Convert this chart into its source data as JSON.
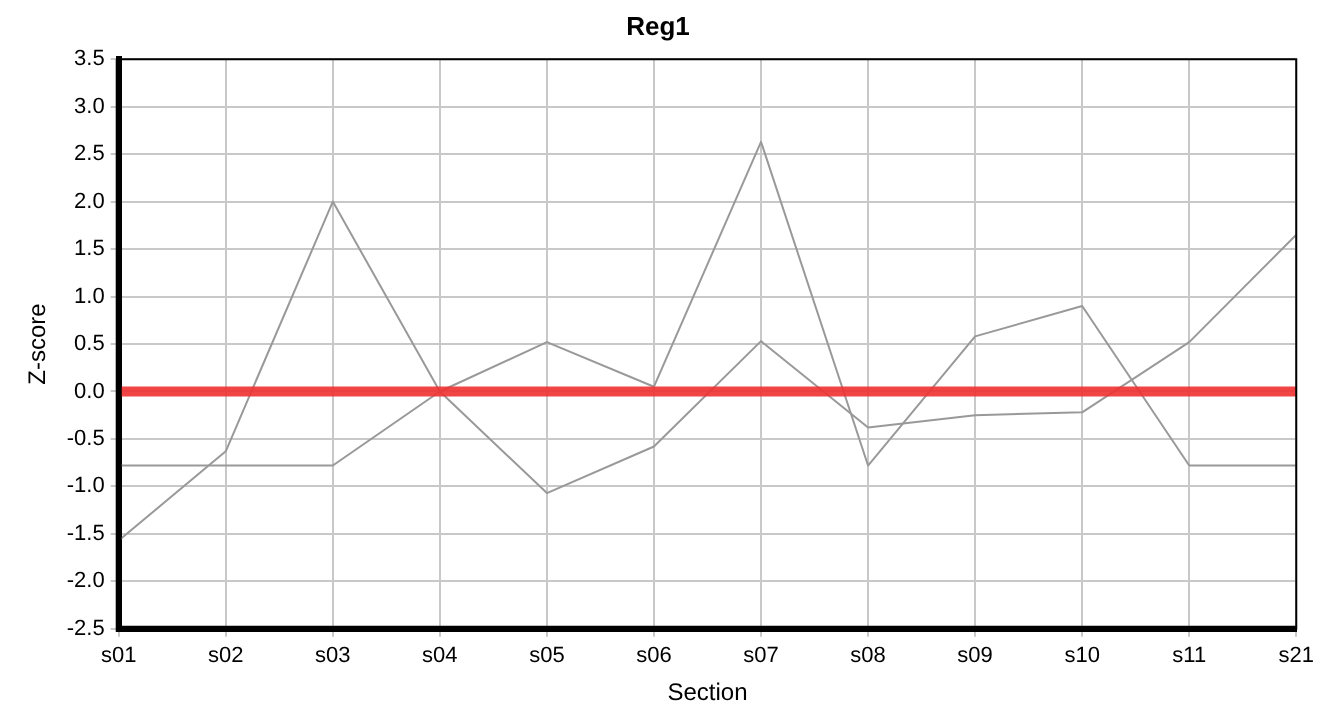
{
  "chart_data": {
    "type": "line",
    "title": "Reg1",
    "xlabel": "Section",
    "ylabel": "Z-score",
    "categories": [
      "s01",
      "s02",
      "s03",
      "s04",
      "s05",
      "s06",
      "s07",
      "s08",
      "s09",
      "s10",
      "s11",
      "s21"
    ],
    "series": [
      {
        "color": "#999999",
        "values": [
          -1.57,
          -0.63,
          2.0,
          0.0,
          -1.07,
          -0.58,
          0.53,
          -0.38,
          -0.25,
          -0.22,
          0.52,
          1.65
        ]
      },
      {
        "color": "#999999",
        "values": [
          -0.78,
          -0.78,
          -0.78,
          0.0,
          0.52,
          0.05,
          2.63,
          -0.78,
          0.58,
          0.9,
          -0.78,
          -0.78
        ]
      }
    ],
    "ylim": [
      -2.5,
      3.5
    ],
    "yticks": [
      {
        "value": -2.5,
        "label": "-2.5"
      },
      {
        "value": -2,
        "label": "-2.0"
      },
      {
        "value": -1.5,
        "label": "-1.5"
      },
      {
        "value": -1,
        "label": "-1.0"
      },
      {
        "value": -0.5,
        "label": "-0.5"
      },
      {
        "value": 0,
        "label": "0.0"
      },
      {
        "value": 0.5,
        "label": "0.5"
      },
      {
        "value": 1,
        "label": "1.0"
      },
      {
        "value": 1.5,
        "label": "1.5"
      },
      {
        "value": 2,
        "label": "2.0"
      },
      {
        "value": 2.5,
        "label": "2.5"
      },
      {
        "value": 3,
        "label": "3.0"
      },
      {
        "value": 3.5,
        "label": "3.5"
      }
    ],
    "ref_lines": [
      {
        "axis": "y",
        "value": 0,
        "color": "#f03030"
      }
    ],
    "grid": true,
    "legend": false,
    "marker": "none",
    "line_style": "solid"
  }
}
